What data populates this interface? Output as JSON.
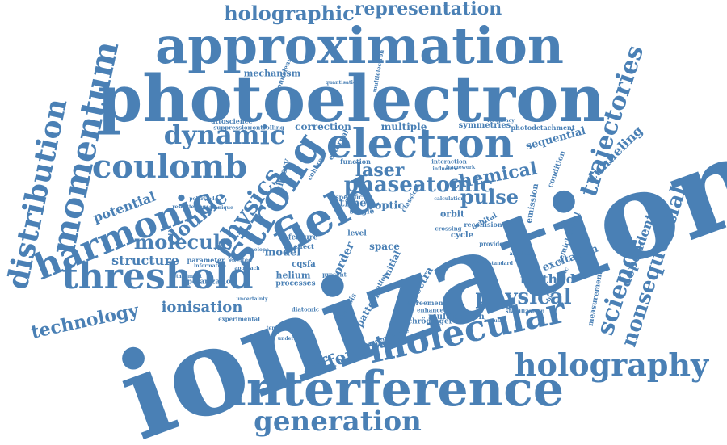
{
  "palette": {
    "word_color": "#4a80b5",
    "background": "#ffffff"
  },
  "words": [
    "ionization",
    "photoelectron",
    "approximation",
    "interference",
    "electron",
    "molecular",
    "field",
    "strong",
    "harmonic",
    "momentum",
    "distribution",
    "threshold",
    "coulomb",
    "holography",
    "generation",
    "trajectories",
    "science",
    "nonsequential",
    "dynamic",
    "holographic",
    "representation",
    "technology",
    "physical",
    "different",
    "molecule",
    "double",
    "physics",
    "phaseatomic",
    "chemical",
    "laser",
    "pulse",
    "ionisation",
    "structure",
    "potential",
    "tunneling",
    "dependent",
    "method",
    "multiphoton",
    "excitation",
    "sequential",
    "correction",
    "multiple",
    "spectra",
    "model",
    "mechanism",
    "symmetries",
    "photodetachment",
    "helium",
    "processes",
    "measurement",
    "orbit",
    "cycle",
    "emission",
    "condition",
    "semiclassical",
    "attoscience",
    "suppression",
    "controlling",
    "polarization",
    "experimental",
    "uncertainty",
    "schrödinger",
    "agreement",
    "enhanced",
    "stabilization",
    "parameter",
    "information",
    "detachment",
    "recollision",
    "interaction",
    "function",
    "specific",
    "theory",
    "time",
    "optic",
    "orbital",
    "order",
    "space",
    "cqsfa",
    "initial",
    "level",
    "single",
    "pattern",
    "analysis",
    "equation",
    "quantisation",
    "framework",
    "influence",
    "feature",
    "effect",
    "approach",
    "crossing",
    "standard",
    "absolute",
    "external",
    "coherent",
    "classical",
    "bichromatic",
    "underlying",
    "temporal",
    "envelope",
    "polarized",
    "technique",
    "excited",
    "diatomic",
    "heteronuclear",
    "multielectron",
    "ponderomotive",
    "provide",
    "present",
    "visible",
    "rescattering",
    "calculation",
    "doubly",
    "frequency",
    "angular"
  ]
}
